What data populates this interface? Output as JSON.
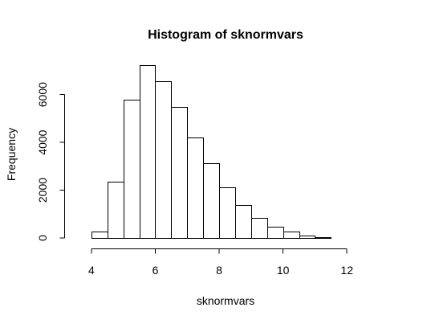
{
  "chart_data": {
    "type": "bar",
    "title": "Histogram of sknormvars",
    "xlabel": "sknormvars",
    "ylabel": "Frequency",
    "xlim": [
      3.5,
      13
    ],
    "ylim": [
      0,
      7200
    ],
    "x_ticks": [
      "4",
      "6",
      "8",
      "10",
      "12"
    ],
    "y_ticks": [
      "0",
      "2000",
      "4000",
      "6000"
    ],
    "bin_width": 0.5,
    "bin_edges": [
      3.5,
      4,
      4.5,
      5,
      5.5,
      6,
      6.5,
      7,
      7.5,
      8,
      8.5,
      9,
      9.5,
      10,
      10.5,
      11,
      11.5,
      12,
      12.5,
      13
    ],
    "values": [
      0,
      280,
      2350,
      5780,
      7250,
      6560,
      5500,
      4200,
      3120,
      2130,
      1370,
      850,
      460,
      260,
      110,
      50,
      10,
      5,
      2
    ],
    "grid": false
  }
}
